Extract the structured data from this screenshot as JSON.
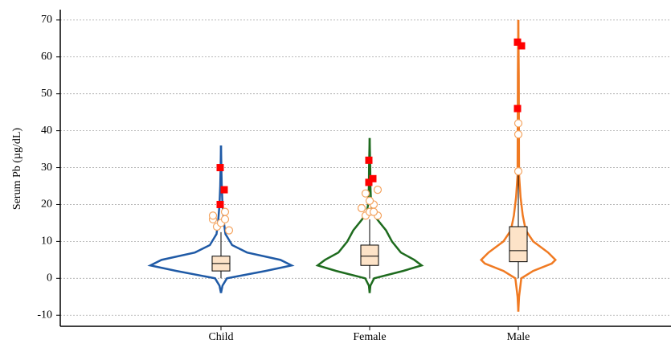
{
  "chart_data": {
    "type": "violin",
    "y_label": "Serum Pb (µg/dL)",
    "categories": [
      "Child",
      "Female",
      "Male"
    ],
    "ylim": [
      -13,
      72.8
    ],
    "yticks": [
      -10,
      0,
      10,
      20,
      30,
      40,
      50,
      60,
      70
    ],
    "grid": true,
    "box_color": "#fde3c8",
    "outlier_color": "#f4a460",
    "extreme_color": "#ff0000",
    "series": [
      {
        "name": "Child",
        "color": "#1f5aa6",
        "kde_y": [
          -4,
          -2,
          0,
          2,
          3.5,
          5,
          7,
          9,
          12,
          15,
          20,
          25,
          30,
          36
        ],
        "kde_width": [
          0,
          0.02,
          0.08,
          0.6,
          0.95,
          0.8,
          0.35,
          0.15,
          0.06,
          0.04,
          0.02,
          0.01,
          0.005,
          0
        ],
        "whisker_low": 0,
        "q1": 2,
        "median": 4,
        "q3": 6,
        "whisker_high": 12.5,
        "outliers": [
          13,
          14,
          15,
          16,
          16,
          17,
          18
        ],
        "extremes": [
          20,
          24,
          30
        ]
      },
      {
        "name": "Female",
        "color": "#1e6b1e",
        "kde_y": [
          -4,
          -2,
          0,
          2,
          3.5,
          5,
          7,
          10,
          13,
          16,
          18,
          20,
          25,
          30,
          38
        ],
        "kde_width": [
          0,
          0.01,
          0.06,
          0.45,
          0.7,
          0.6,
          0.42,
          0.3,
          0.22,
          0.1,
          0.04,
          0.02,
          0.01,
          0.008,
          0
        ],
        "whisker_low": 0,
        "q1": 3.5,
        "median": 6,
        "q3": 9,
        "whisker_high": 16,
        "outliers": [
          17,
          17,
          18,
          18,
          19,
          19,
          20,
          21,
          23,
          24
        ],
        "extremes": [
          26,
          27,
          32
        ]
      },
      {
        "name": "Male",
        "color": "#f07a22",
        "kde_y": [
          -9,
          -5,
          0,
          2,
          4,
          5,
          7,
          10,
          13,
          17,
          22,
          28,
          40,
          55,
          70
        ],
        "kde_width": [
          0,
          0.01,
          0.04,
          0.2,
          0.45,
          0.5,
          0.4,
          0.2,
          0.1,
          0.06,
          0.03,
          0.01,
          0.008,
          0.006,
          0
        ],
        "whisker_low": 0,
        "q1": 4.5,
        "median": 7.5,
        "q3": 14,
        "whisker_high": 28,
        "outliers": [
          29,
          39,
          42
        ],
        "extremes": [
          46,
          63,
          64
        ]
      }
    ]
  }
}
